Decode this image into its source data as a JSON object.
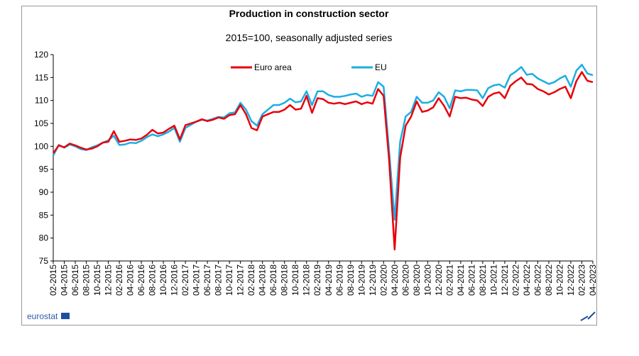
{
  "chart_data": {
    "type": "line",
    "title": "Production in construction sector",
    "subtitle": "2015=100, seasonally adjusted series",
    "source_logo": "eurostat",
    "legend": "top",
    "grid": false,
    "ylim": [
      75,
      120
    ],
    "yticks": [
      75,
      80,
      85,
      90,
      95,
      100,
      105,
      110,
      115,
      120
    ],
    "categories": [
      "02-2015",
      null,
      "04-2015",
      null,
      "06-2015",
      null,
      "08-2015",
      null,
      "10-2015",
      null,
      "12-2015",
      null,
      "02-2016",
      null,
      "04-2016",
      null,
      "06-2016",
      null,
      "08-2016",
      null,
      "10-2016",
      null,
      "12-2016",
      null,
      "02-2017",
      null,
      "04-2017",
      null,
      "06-2017",
      null,
      "08-2017",
      null,
      "10-2017",
      null,
      "12-2017",
      null,
      "02-2018",
      null,
      "04-2018",
      null,
      "06-2018",
      null,
      "08-2018",
      null,
      "10-2018",
      null,
      "12-2018",
      null,
      "02-2019",
      null,
      "04-2019",
      null,
      "06-2019",
      null,
      "08-2019",
      null,
      "10-2019",
      null,
      "12-2019",
      null,
      "02-2020",
      null,
      "04-2020",
      null,
      "06-2020",
      null,
      "08-2020",
      null,
      "10-2020",
      null,
      "12-2020",
      null,
      "02-2021",
      null,
      "04-2021",
      null,
      "06-2021",
      null,
      "08-2021",
      null,
      "10-2021",
      null,
      "12-2021",
      null,
      "02-2022",
      null,
      "04-2022",
      null,
      "06-2022",
      null,
      "08-2022",
      null,
      "10-2022",
      null,
      "12-2022",
      null,
      "02-2023",
      null,
      "04-2023"
    ],
    "series": [
      {
        "name": "Euro area",
        "color": "#e8000b",
        "values": [
          98.5,
          100.2,
          99.8,
          100.6,
          100.2,
          99.7,
          99.3,
          99.5,
          100.0,
          100.8,
          101.0,
          103.3,
          101.0,
          101.2,
          101.5,
          101.4,
          101.7,
          102.5,
          103.6,
          102.8,
          103.0,
          103.8,
          104.5,
          101.5,
          104.6,
          105.0,
          105.4,
          105.9,
          105.5,
          105.8,
          106.3,
          106.0,
          106.8,
          107.0,
          109.0,
          107.0,
          104.0,
          103.5,
          106.5,
          107.0,
          107.5,
          107.5,
          108.0,
          109.0,
          108.0,
          108.2,
          111.0,
          107.3,
          110.5,
          110.3,
          109.5,
          109.3,
          109.5,
          109.2,
          109.5,
          109.8,
          109.2,
          109.6,
          109.3,
          112.5,
          111.0,
          97.0,
          77.5,
          97.5,
          104.5,
          106.5,
          109.8,
          107.5,
          107.8,
          108.5,
          110.5,
          108.8,
          106.5,
          110.8,
          110.5,
          110.6,
          110.2,
          110.0,
          108.8,
          110.8,
          111.5,
          111.8,
          110.5,
          113.2,
          114.2,
          115.0,
          113.6,
          113.5,
          112.5,
          112.0,
          111.3,
          111.8,
          112.5,
          113.0,
          110.5,
          114.2,
          116.2,
          114.3,
          114.0
        ]
      },
      {
        "name": "EU",
        "color": "#1aaee5",
        "values": [
          98.0,
          100.3,
          99.7,
          100.4,
          100.0,
          99.4,
          99.2,
          99.8,
          100.2,
          100.8,
          101.3,
          102.3,
          100.3,
          100.4,
          100.8,
          100.7,
          101.2,
          102.0,
          102.6,
          102.2,
          102.6,
          103.2,
          104.0,
          101.0,
          104.0,
          104.7,
          105.4,
          105.8,
          105.6,
          106.0,
          106.4,
          106.3,
          107.2,
          107.4,
          109.5,
          108.0,
          105.5,
          104.5,
          107.0,
          108.0,
          109.0,
          109.0,
          109.5,
          110.4,
          109.6,
          109.8,
          112.0,
          109.0,
          112.0,
          112.0,
          111.2,
          110.8,
          110.8,
          111.0,
          111.3,
          111.5,
          110.8,
          111.2,
          111.0,
          114.0,
          113.0,
          99.0,
          84.0,
          101.0,
          106.5,
          107.5,
          110.8,
          109.5,
          109.5,
          110.0,
          111.8,
          110.8,
          108.3,
          112.2,
          112.0,
          112.3,
          112.3,
          112.2,
          110.5,
          112.7,
          113.3,
          113.5,
          112.8,
          115.5,
          116.3,
          117.3,
          115.6,
          115.8,
          114.8,
          114.2,
          113.6,
          114.0,
          114.8,
          115.4,
          113.0,
          116.5,
          117.8,
          115.9,
          115.5
        ]
      }
    ]
  }
}
